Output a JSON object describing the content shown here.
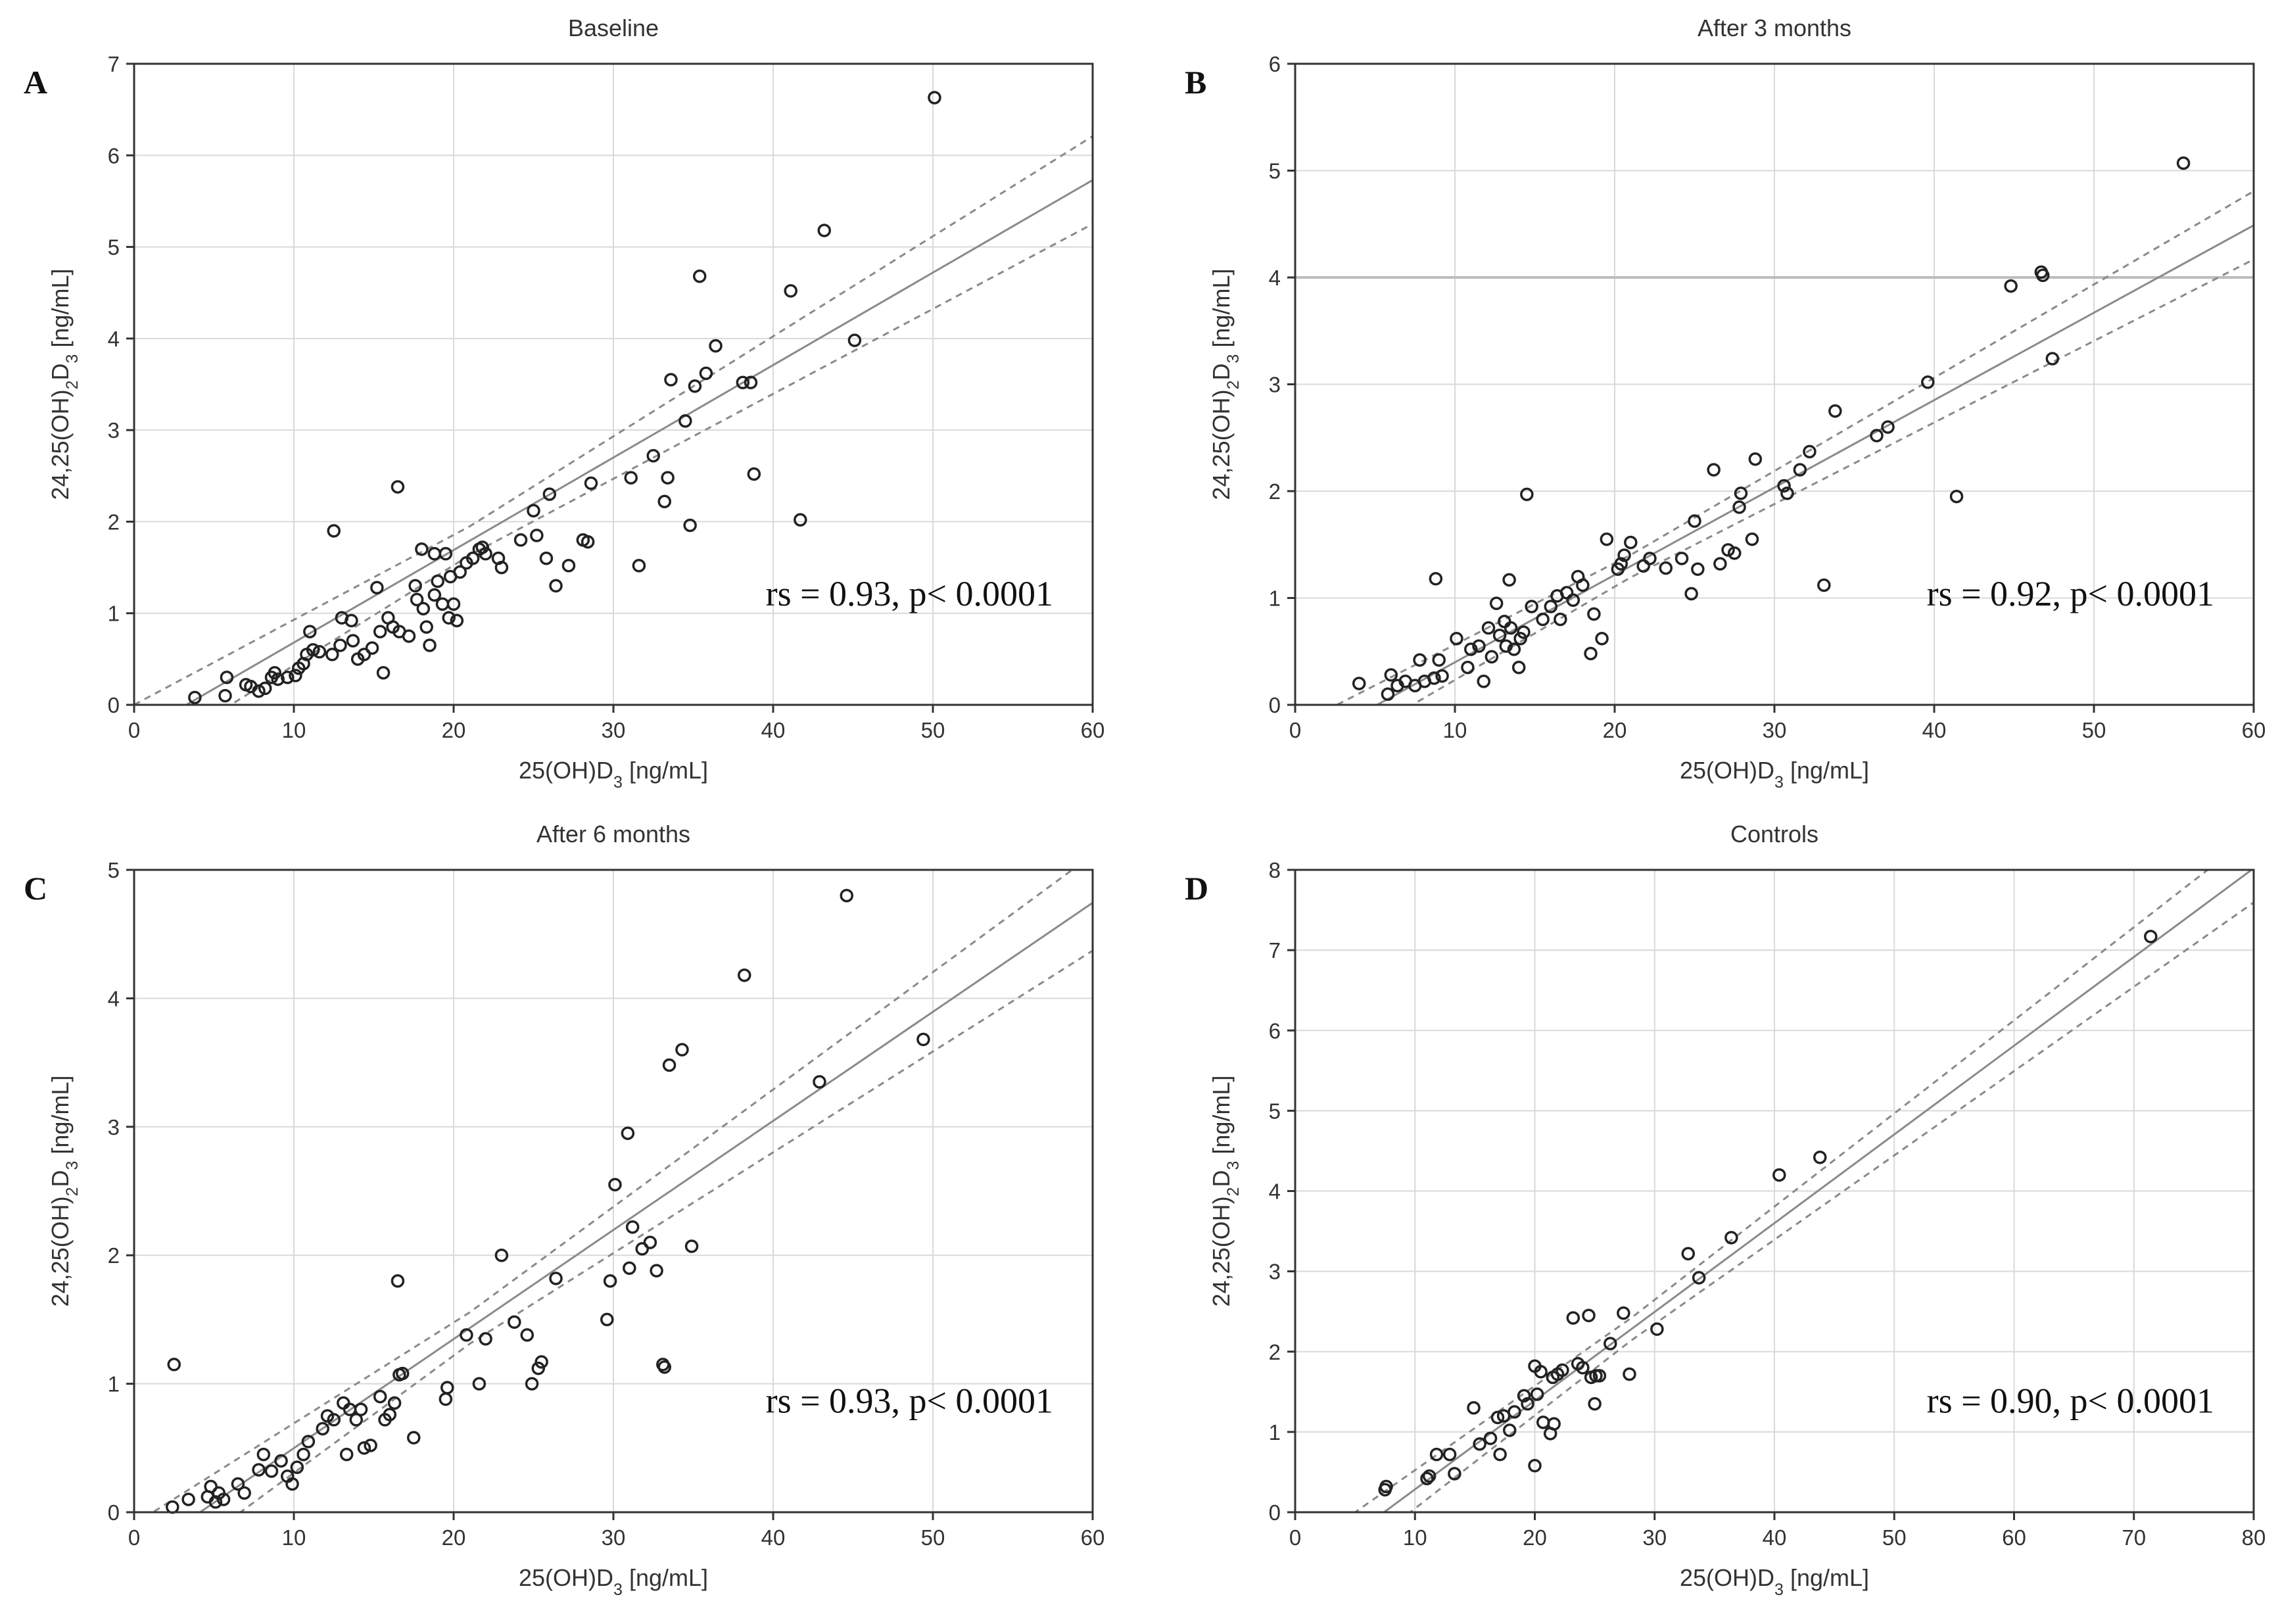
{
  "figure": {
    "xlabel": "25(OH)D",
    "xlabel_sub": "3",
    "xlabel_unit": " [ng/mL]",
    "ylabel_pre": "24,25(OH)",
    "ylabel_sub1": "2",
    "ylabel_mid": "D",
    "ylabel_sub2": "3",
    "ylabel_unit": " [ng/mL]"
  },
  "chart_data": [
    {
      "letter": "A",
      "title": "Baseline",
      "type": "scatter",
      "xlim": [
        0,
        60
      ],
      "ylim": [
        0,
        7
      ],
      "xticks": [
        0,
        10,
        20,
        30,
        40,
        50,
        60
      ],
      "yticks": [
        0,
        1,
        2,
        3,
        4,
        5,
        6,
        7
      ],
      "annotation": "rs = 0.93, p< 0.0001",
      "fit": {
        "slope": 0.101,
        "intercept": -0.33,
        "ci": 0.45
      },
      "reference_lines": [],
      "points": [
        [
          3.8,
          0.08
        ],
        [
          5.7,
          0.1
        ],
        [
          5.8,
          0.3
        ],
        [
          7,
          0.22
        ],
        [
          7.3,
          0.2
        ],
        [
          7.8,
          0.15
        ],
        [
          8.2,
          0.18
        ],
        [
          8.6,
          0.3
        ],
        [
          8.8,
          0.35
        ],
        [
          9,
          0.28
        ],
        [
          9.6,
          0.3
        ],
        [
          10.1,
          0.32
        ],
        [
          10.3,
          0.4
        ],
        [
          10.6,
          0.45
        ],
        [
          10.8,
          0.55
        ],
        [
          11,
          0.8
        ],
        [
          11.2,
          0.6
        ],
        [
          11.6,
          0.58
        ],
        [
          12.4,
          0.55
        ],
        [
          12.5,
          1.9
        ],
        [
          12.9,
          0.65
        ],
        [
          13,
          0.95
        ],
        [
          13.6,
          0.92
        ],
        [
          13.7,
          0.7
        ],
        [
          14,
          0.5
        ],
        [
          14.4,
          0.55
        ],
        [
          14.9,
          0.62
        ],
        [
          15.2,
          1.28
        ],
        [
          15.4,
          0.8
        ],
        [
          15.6,
          0.35
        ],
        [
          15.9,
          0.95
        ],
        [
          16.2,
          0.85
        ],
        [
          16.5,
          2.38
        ],
        [
          16.6,
          0.8
        ],
        [
          17.2,
          0.75
        ],
        [
          17.6,
          1.3
        ],
        [
          17.7,
          1.15
        ],
        [
          18,
          1.7
        ],
        [
          18.1,
          1.05
        ],
        [
          18.3,
          0.85
        ],
        [
          18.5,
          0.65
        ],
        [
          18.8,
          1.2
        ],
        [
          18.8,
          1.65
        ],
        [
          19,
          1.35
        ],
        [
          19.3,
          1.1
        ],
        [
          19.5,
          1.65
        ],
        [
          19.7,
          0.95
        ],
        [
          19.8,
          1.4
        ],
        [
          20,
          1.1
        ],
        [
          20.2,
          0.92
        ],
        [
          20.4,
          1.45
        ],
        [
          20.8,
          1.55
        ],
        [
          21.2,
          1.6
        ],
        [
          21.6,
          1.7
        ],
        [
          21.8,
          1.72
        ],
        [
          22,
          1.65
        ],
        [
          22.8,
          1.6
        ],
        [
          23,
          1.5
        ],
        [
          24.2,
          1.8
        ],
        [
          25,
          2.12
        ],
        [
          25.2,
          1.85
        ],
        [
          25.8,
          1.6
        ],
        [
          26,
          2.3
        ],
        [
          26.4,
          1.3
        ],
        [
          27.2,
          1.52
        ],
        [
          28.1,
          1.8
        ],
        [
          28.4,
          1.78
        ],
        [
          28.6,
          2.42
        ],
        [
          31.1,
          2.48
        ],
        [
          31.6,
          1.52
        ],
        [
          32.5,
          2.72
        ],
        [
          33.2,
          2.22
        ],
        [
          33.4,
          2.48
        ],
        [
          33.6,
          3.55
        ],
        [
          34.5,
          3.1
        ],
        [
          34.8,
          1.96
        ],
        [
          35.1,
          3.48
        ],
        [
          35.4,
          4.68
        ],
        [
          35.8,
          3.62
        ],
        [
          36.4,
          3.92
        ],
        [
          38.1,
          3.52
        ],
        [
          38.6,
          3.52
        ],
        [
          38.8,
          2.52
        ],
        [
          41.1,
          4.52
        ],
        [
          41.7,
          2.02
        ],
        [
          43.2,
          5.18
        ],
        [
          45.1,
          3.98
        ],
        [
          50.1,
          6.63
        ]
      ]
    },
    {
      "letter": "B",
      "title": "After 3 months",
      "type": "scatter",
      "xlim": [
        0,
        60
      ],
      "ylim": [
        0,
        6
      ],
      "xticks": [
        0,
        10,
        20,
        30,
        40,
        50,
        60
      ],
      "yticks": [
        0,
        1,
        2,
        3,
        4,
        5,
        6
      ],
      "annotation": "rs = 0.92, p< 0.0001",
      "fit": {
        "slope": 0.0818,
        "intercept": -0.42,
        "ci": 0.3
      },
      "reference_lines": [
        4
      ],
      "points": [
        [
          4,
          0.2
        ],
        [
          5.8,
          0.1
        ],
        [
          6,
          0.28
        ],
        [
          6.4,
          0.18
        ],
        [
          6.9,
          0.22
        ],
        [
          7.5,
          0.18
        ],
        [
          7.8,
          0.42
        ],
        [
          8.1,
          0.22
        ],
        [
          8.7,
          0.25
        ],
        [
          8.8,
          1.18
        ],
        [
          9,
          0.42
        ],
        [
          9.2,
          0.27
        ],
        [
          10.1,
          0.62
        ],
        [
          10.8,
          0.35
        ],
        [
          11,
          0.52
        ],
        [
          11.5,
          0.55
        ],
        [
          11.8,
          0.22
        ],
        [
          12.1,
          0.72
        ],
        [
          12.3,
          0.45
        ],
        [
          12.6,
          0.95
        ],
        [
          12.8,
          0.65
        ],
        [
          13.1,
          0.78
        ],
        [
          13.2,
          0.55
        ],
        [
          13.4,
          1.17
        ],
        [
          13.5,
          0.72
        ],
        [
          13.7,
          0.52
        ],
        [
          14,
          0.35
        ],
        [
          14.1,
          0.62
        ],
        [
          14.3,
          0.68
        ],
        [
          14.5,
          1.97
        ],
        [
          14.8,
          0.92
        ],
        [
          15.5,
          0.8
        ],
        [
          16,
          0.92
        ],
        [
          16.4,
          1.02
        ],
        [
          16.6,
          0.8
        ],
        [
          17,
          1.05
        ],
        [
          17.4,
          0.98
        ],
        [
          17.7,
          1.2
        ],
        [
          18,
          1.12
        ],
        [
          18.5,
          0.48
        ],
        [
          18.7,
          0.85
        ],
        [
          19.2,
          0.62
        ],
        [
          19.5,
          1.55
        ],
        [
          20.2,
          1.27
        ],
        [
          20.4,
          1.32
        ],
        [
          20.6,
          1.4
        ],
        [
          21,
          1.52
        ],
        [
          21.8,
          1.3
        ],
        [
          22.2,
          1.37
        ],
        [
          23.2,
          1.28
        ],
        [
          24.2,
          1.37
        ],
        [
          24.8,
          1.04
        ],
        [
          25,
          1.72
        ],
        [
          25.2,
          1.27
        ],
        [
          26.2,
          2.2
        ],
        [
          26.6,
          1.32
        ],
        [
          27.1,
          1.45
        ],
        [
          27.5,
          1.42
        ],
        [
          27.8,
          1.85
        ],
        [
          27.9,
          1.98
        ],
        [
          28.6,
          1.55
        ],
        [
          28.8,
          2.3
        ],
        [
          30.6,
          2.05
        ],
        [
          30.8,
          1.98
        ],
        [
          31.6,
          2.2
        ],
        [
          32.2,
          2.37
        ],
        [
          33.1,
          1.12
        ],
        [
          33.8,
          2.75
        ],
        [
          36.4,
          2.52
        ],
        [
          37.1,
          2.6
        ],
        [
          39.6,
          3.02
        ],
        [
          41.4,
          1.95
        ],
        [
          44.8,
          3.92
        ],
        [
          46.7,
          4.05
        ],
        [
          46.8,
          4.02
        ],
        [
          47.4,
          3.24
        ],
        [
          55.6,
          5.07
        ]
      ]
    },
    {
      "letter": "C",
      "title": "After 6 months",
      "type": "scatter",
      "xlim": [
        0,
        60
      ],
      "ylim": [
        0,
        5
      ],
      "xticks": [
        0,
        10,
        20,
        30,
        40,
        50,
        60
      ],
      "yticks": [
        0,
        1,
        2,
        3,
        4,
        5
      ],
      "annotation": "rs = 0.93, p< 0.0001",
      "fit": {
        "slope": 0.0849,
        "intercept": -0.35,
        "ci": 0.35
      },
      "reference_lines": [],
      "points": [
        [
          2.4,
          0.04
        ],
        [
          2.5,
          1.15
        ],
        [
          3.4,
          0.1
        ],
        [
          4.6,
          0.12
        ],
        [
          4.8,
          0.2
        ],
        [
          5.1,
          0.08
        ],
        [
          5.3,
          0.15
        ],
        [
          5.6,
          0.1
        ],
        [
          6.5,
          0.22
        ],
        [
          6.9,
          0.15
        ],
        [
          7.8,
          0.33
        ],
        [
          8.1,
          0.45
        ],
        [
          8.6,
          0.32
        ],
        [
          9.2,
          0.4
        ],
        [
          9.6,
          0.28
        ],
        [
          9.9,
          0.22
        ],
        [
          10.2,
          0.35
        ],
        [
          10.6,
          0.45
        ],
        [
          10.9,
          0.55
        ],
        [
          11.8,
          0.65
        ],
        [
          12.1,
          0.75
        ],
        [
          12.5,
          0.72
        ],
        [
          13.1,
          0.85
        ],
        [
          13.3,
          0.45
        ],
        [
          13.5,
          0.8
        ],
        [
          13.9,
          0.72
        ],
        [
          14.2,
          0.8
        ],
        [
          14.4,
          0.5
        ],
        [
          14.8,
          0.52
        ],
        [
          15.4,
          0.9
        ],
        [
          15.7,
          0.72
        ],
        [
          16,
          0.76
        ],
        [
          16.3,
          0.85
        ],
        [
          16.5,
          1.8
        ],
        [
          16.6,
          1.07
        ],
        [
          16.8,
          1.08
        ],
        [
          17.5,
          0.58
        ],
        [
          19.5,
          0.88
        ],
        [
          19.6,
          0.97
        ],
        [
          20.8,
          1.38
        ],
        [
          21.6,
          1
        ],
        [
          22,
          1.35
        ],
        [
          23,
          2
        ],
        [
          23.8,
          1.48
        ],
        [
          24.6,
          1.38
        ],
        [
          24.9,
          1
        ],
        [
          25.3,
          1.12
        ],
        [
          25.5,
          1.17
        ],
        [
          26.4,
          1.82
        ],
        [
          29.6,
          1.5
        ],
        [
          29.8,
          1.8
        ],
        [
          30.1,
          2.55
        ],
        [
          30.9,
          2.95
        ],
        [
          31,
          1.9
        ],
        [
          31.2,
          2.22
        ],
        [
          31.8,
          2.05
        ],
        [
          32.3,
          2.1
        ],
        [
          32.7,
          1.88
        ],
        [
          33.1,
          1.15
        ],
        [
          33.2,
          1.13
        ],
        [
          33.5,
          3.48
        ],
        [
          34.3,
          3.6
        ],
        [
          34.9,
          2.07
        ],
        [
          38.2,
          4.18
        ],
        [
          42.9,
          3.35
        ],
        [
          44.6,
          4.8
        ],
        [
          49.4,
          3.68
        ]
      ]
    },
    {
      "letter": "D",
      "title": "Controls",
      "type": "scatter",
      "xlim": [
        0,
        80
      ],
      "ylim": [
        0,
        8
      ],
      "xticks": [
        0,
        10,
        20,
        30,
        40,
        50,
        60,
        70,
        80
      ],
      "yticks": [
        0,
        1,
        2,
        3,
        4,
        5,
        6,
        7,
        8
      ],
      "annotation": "rs = 0.90, p< 0.0001",
      "fit": {
        "slope": 0.1105,
        "intercept": -0.82,
        "ci": 0.4
      },
      "reference_lines": [],
      "points": [
        [
          7.5,
          0.28
        ],
        [
          7.6,
          0.32
        ],
        [
          11,
          0.42
        ],
        [
          11.2,
          0.45
        ],
        [
          11.8,
          0.72
        ],
        [
          12.9,
          0.72
        ],
        [
          13.3,
          0.48
        ],
        [
          14.9,
          1.3
        ],
        [
          15.4,
          0.85
        ],
        [
          16.3,
          0.92
        ],
        [
          16.9,
          1.18
        ],
        [
          17.1,
          0.72
        ],
        [
          17.4,
          1.2
        ],
        [
          17.9,
          1.02
        ],
        [
          18.3,
          1.25
        ],
        [
          19.1,
          1.45
        ],
        [
          19.4,
          1.35
        ],
        [
          20,
          1.82
        ],
        [
          20,
          0.58
        ],
        [
          20.2,
          1.47
        ],
        [
          20.5,
          1.75
        ],
        [
          20.7,
          1.12
        ],
        [
          21.3,
          0.98
        ],
        [
          21.5,
          1.68
        ],
        [
          21.6,
          1.1
        ],
        [
          21.9,
          1.72
        ],
        [
          22.3,
          1.77
        ],
        [
          23.2,
          2.42
        ],
        [
          23.6,
          1.85
        ],
        [
          24,
          1.8
        ],
        [
          24.5,
          2.45
        ],
        [
          24.7,
          1.68
        ],
        [
          25,
          1.35
        ],
        [
          25.1,
          1.7
        ],
        [
          25.4,
          1.7
        ],
        [
          26.3,
          2.1
        ],
        [
          27.4,
          2.48
        ],
        [
          27.9,
          1.72
        ],
        [
          30.2,
          2.28
        ],
        [
          32.8,
          3.22
        ],
        [
          33.7,
          2.92
        ],
        [
          36.4,
          3.42
        ],
        [
          40.4,
          4.2
        ],
        [
          43.8,
          4.42
        ],
        [
          71.4,
          7.17
        ]
      ]
    }
  ]
}
